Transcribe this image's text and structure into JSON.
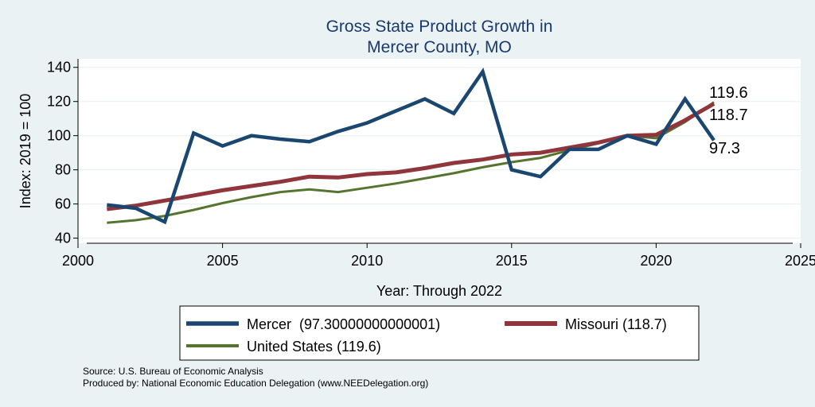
{
  "chart_data": {
    "type": "line",
    "title_lines": [
      "Gross State Product Growth in",
      "Mercer County, MO"
    ],
    "xlabel": "Year: Through 2022",
    "ylabel": "Index: 2019 = 100",
    "xlim": [
      2000,
      2025
    ],
    "ylim": [
      37,
      145
    ],
    "xticks": [
      2000,
      2005,
      2010,
      2015,
      2020,
      2025
    ],
    "yticks": [
      40,
      60,
      80,
      100,
      120,
      140
    ],
    "grid": true,
    "legend_position": "bottom",
    "series": [
      {
        "name": "Mercer",
        "legend_label": "Mercer  (97.30000000000001)",
        "color": "#1a476f",
        "x": [
          2001,
          2002,
          2003,
          2004,
          2005,
          2006,
          2007,
          2008,
          2009,
          2010,
          2011,
          2012,
          2013,
          2014,
          2015,
          2016,
          2017,
          2018,
          2019,
          2020,
          2021,
          2022
        ],
        "values": [
          59.5,
          57.5,
          49.5,
          101.5,
          94,
          100,
          98,
          96.5,
          102.5,
          107.5,
          114.5,
          121.5,
          113,
          137.5,
          80,
          76,
          92,
          92,
          100,
          95,
          121.5,
          97.3
        ],
        "end_label": "97.3"
      },
      {
        "name": "Missouri",
        "legend_label": "Missouri (118.7)",
        "color": "#90353b",
        "x": [
          2001,
          2002,
          2003,
          2004,
          2005,
          2006,
          2007,
          2008,
          2009,
          2010,
          2011,
          2012,
          2013,
          2014,
          2015,
          2016,
          2017,
          2018,
          2019,
          2020,
          2021,
          2022
        ],
        "values": [
          57,
          59,
          62,
          65,
          68,
          70.5,
          73,
          76,
          75.5,
          77.5,
          78.5,
          81,
          84,
          86,
          89,
          90,
          93,
          96,
          100,
          100.5,
          109,
          118.7
        ],
        "end_label": "118.7"
      },
      {
        "name": "United States",
        "legend_label": "United States (119.6)",
        "color": "#55752f",
        "x": [
          2001,
          2002,
          2003,
          2004,
          2005,
          2006,
          2007,
          2008,
          2009,
          2010,
          2011,
          2012,
          2013,
          2014,
          2015,
          2016,
          2017,
          2018,
          2019,
          2020,
          2021,
          2022
        ],
        "values": [
          49,
          50.5,
          53,
          56.5,
          60.5,
          64,
          67,
          68.5,
          67,
          69.5,
          72,
          75,
          78,
          81.5,
          84.5,
          87,
          91.5,
          95.5,
          100,
          98.5,
          108,
          119.6
        ],
        "end_label": "119.6"
      }
    ]
  },
  "footer": {
    "source": "Source: U.S. Bureau of Economic Analysis",
    "produced": "Produced by: National Economic Education Delegation (www.NEEDelegation.org)"
  }
}
